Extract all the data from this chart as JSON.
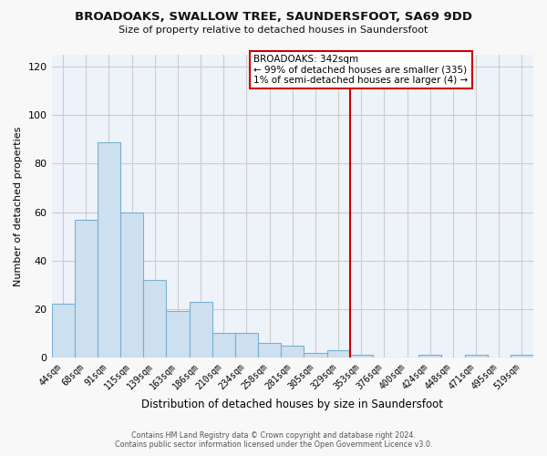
{
  "title": "BROADOAKS, SWALLOW TREE, SAUNDERSFOOT, SA69 9DD",
  "subtitle": "Size of property relative to detached houses in Saundersfoot",
  "xlabel": "Distribution of detached houses by size in Saundersfoot",
  "ylabel": "Number of detached properties",
  "categories": [
    "44sqm",
    "68sqm",
    "91sqm",
    "115sqm",
    "139sqm",
    "163sqm",
    "186sqm",
    "210sqm",
    "234sqm",
    "258sqm",
    "281sqm",
    "305sqm",
    "329sqm",
    "353sqm",
    "376sqm",
    "400sqm",
    "424sqm",
    "448sqm",
    "471sqm",
    "495sqm",
    "519sqm"
  ],
  "values": [
    22,
    57,
    89,
    60,
    32,
    19,
    23,
    10,
    10,
    6,
    5,
    2,
    3,
    1,
    0,
    0,
    1,
    0,
    1,
    0,
    1
  ],
  "bar_color": "#cce0f0",
  "bar_edge_color": "#7ab0d0",
  "vline_x_index": 13,
  "vline_color": "#cc0000",
  "annotation_title": "BROADOAKS: 342sqm",
  "annotation_line1": "← 99% of detached houses are smaller (335)",
  "annotation_line2": "1% of semi-detached houses are larger (4) →",
  "annotation_box_color": "#ffffff",
  "annotation_box_edge": "#cc0000",
  "ylim": [
    0,
    125
  ],
  "yticks": [
    0,
    20,
    40,
    60,
    80,
    100,
    120
  ],
  "footer_line1": "Contains HM Land Registry data © Crown copyright and database right 2024.",
  "footer_line2": "Contains public sector information licensed under the Open Government Licence v3.0.",
  "plot_bg_color": "#eef3fa",
  "fig_bg_color": "#f8f8f8"
}
